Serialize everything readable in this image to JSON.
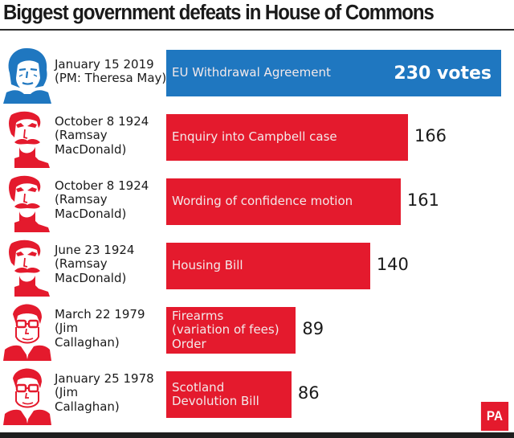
{
  "title": "Biggest government defeats in House of Commons",
  "logo": "PA",
  "colors": {
    "highlight": "#1f77c0",
    "default": "#e41a2d",
    "text": "#1a1a1a"
  },
  "chart_data": {
    "type": "bar",
    "orientation": "horizontal",
    "title": "Biggest government defeats in House of Commons",
    "xlabel": "",
    "ylabel": "",
    "unit": "votes",
    "xlim": [
      0,
      230
    ],
    "grid": false,
    "categories": [
      "EU Withdrawal Agreement",
      "Enquiry into Campbell case",
      "Wording of confidence motion",
      "Housing Bill",
      "Firearms (variation of fees) Order",
      "Scotland Devolution Bill"
    ],
    "values": [
      230,
      166,
      161,
      140,
      89,
      86
    ],
    "rows": [
      {
        "date": "January 15 2019",
        "pm": "(PM: Theresa May)",
        "pm_lines": [
          "January 15 2019",
          "(PM: Theresa May)"
        ],
        "bar_lines": [
          "EU Withdrawal Agreement"
        ],
        "value": 230,
        "value_label": "230 votes",
        "highlight": true,
        "portrait": "theresa-may"
      },
      {
        "date": "October 8 1924",
        "pm_lines": [
          "October 8 1924",
          "(Ramsay",
          "MacDonald)"
        ],
        "bar_lines": [
          "Enquiry into Campbell case"
        ],
        "value": 166,
        "value_label": "166",
        "highlight": false,
        "portrait": "ramsay-macdonald"
      },
      {
        "date": "October 8 1924",
        "pm_lines": [
          "October 8 1924",
          "(Ramsay",
          "MacDonald)"
        ],
        "bar_lines": [
          "Wording of confidence motion"
        ],
        "value": 161,
        "value_label": "161",
        "highlight": false,
        "portrait": "ramsay-macdonald"
      },
      {
        "date": "June 23 1924",
        "pm_lines": [
          "June 23 1924",
          "(Ramsay",
          "MacDonald)"
        ],
        "bar_lines": [
          "Housing Bill"
        ],
        "value": 140,
        "value_label": "140",
        "highlight": false,
        "portrait": "ramsay-macdonald"
      },
      {
        "date": "March 22 1979",
        "pm_lines": [
          "March 22 1979",
          "(Jim",
          "Callaghan)"
        ],
        "bar_lines": [
          "Firearms",
          "(variation of fees)",
          "Order"
        ],
        "value": 89,
        "value_label": "89",
        "highlight": false,
        "portrait": "jim-callaghan"
      },
      {
        "date": "January 25 1978",
        "pm_lines": [
          "January 25 1978",
          "(Jim",
          "Callaghan)"
        ],
        "bar_lines": [
          "Scotland",
          "Devolution Bill"
        ],
        "value": 86,
        "value_label": "86",
        "highlight": false,
        "portrait": "jim-callaghan"
      }
    ]
  }
}
